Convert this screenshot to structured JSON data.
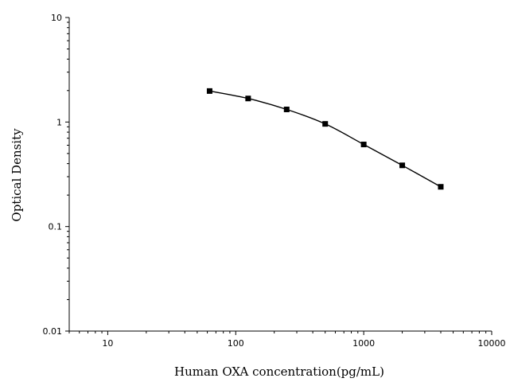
{
  "chart_data": {
    "type": "line",
    "title": "",
    "xlabel": "Human OXA concentration(pg/mL)",
    "ylabel": "Optical Density",
    "x_scale": "log",
    "y_scale": "log",
    "xlim": [
      5,
      10000
    ],
    "ylim": [
      0.01,
      10
    ],
    "x_ticks": [
      10,
      100,
      1000,
      10000
    ],
    "x_tick_labels": [
      "10",
      "100",
      "1000",
      "10000"
    ],
    "y_ticks": [
      0.01,
      0.1,
      1,
      10
    ],
    "y_tick_labels": [
      "0.01",
      "0.1",
      "1",
      "10"
    ],
    "grid": false,
    "legend": "none",
    "series": [
      {
        "marker": "square",
        "color": "#000000",
        "x": [
          62.5,
          125,
          250,
          500,
          1000,
          2000,
          4000
        ],
        "y": [
          1.98,
          1.68,
          1.32,
          0.96,
          0.61,
          0.385,
          0.24
        ]
      }
    ]
  }
}
